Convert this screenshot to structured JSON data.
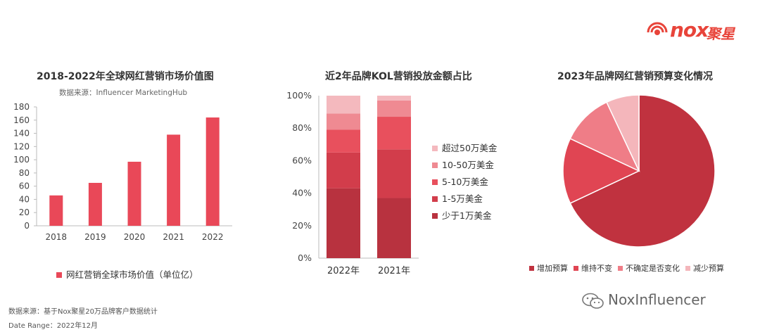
{
  "logo": {
    "text": "nox",
    "cn": "聚星",
    "color": "#e8443a"
  },
  "chart_data": [
    {
      "type": "bar",
      "title": "2018-2022年全球网红营销市场价值图",
      "subtitle": "数据来源：Influencer MarketingHub",
      "categories": [
        "2018",
        "2019",
        "2020",
        "2021",
        "2022"
      ],
      "series": [
        {
          "name": "网红营销全球市场价值（单位亿）",
          "values": [
            46,
            65,
            97,
            138,
            164
          ],
          "color": "#e94858"
        }
      ],
      "yticks": [
        "0",
        "20",
        "40",
        "60",
        "80",
        "100",
        "120",
        "140",
        "160",
        "180"
      ],
      "ylim": [
        0,
        180
      ],
      "grid": false,
      "legend": "bottom"
    },
    {
      "type": "bar",
      "stacked": true,
      "title": "近2年品牌KOL营销投放金额占比",
      "categories": [
        "2022年",
        "2021年"
      ],
      "yticks": [
        "0%",
        "20%",
        "40%",
        "60%",
        "80%",
        "100%"
      ],
      "ylim": [
        0,
        100
      ],
      "series": [
        {
          "name": "少于1万美金",
          "values": [
            43,
            37
          ],
          "color": "#b8323f"
        },
        {
          "name": "1-5万美金",
          "values": [
            22,
            30
          ],
          "color": "#d23d4b"
        },
        {
          "name": "5-10万美金",
          "values": [
            14,
            20
          ],
          "color": "#e8505d"
        },
        {
          "name": "10-50万美金",
          "values": [
            10,
            10
          ],
          "color": "#ef8a92"
        },
        {
          "name": "超过50万美金",
          "values": [
            11,
            3
          ],
          "color": "#f4b9be"
        }
      ],
      "legend": "right"
    },
    {
      "type": "pie",
      "title": "2023年品牌网红营销预算变化情况",
      "slices": [
        {
          "label": "增加预算",
          "value": 68,
          "color": "#c0323f"
        },
        {
          "label": "维持不变",
          "value": 14,
          "color": "#e04553"
        },
        {
          "label": "不确定是否变化",
          "value": 11,
          "color": "#ef7d87"
        },
        {
          "label": "减少预算",
          "value": 7,
          "color": "#f4b6bb"
        }
      ],
      "legend": "bottom"
    }
  ],
  "footer": {
    "source": "数据来源：基于Nox聚星20万品牌客户数据统计",
    "date_range": "Date Range：2022年12月"
  },
  "wechat": {
    "label": "NoxInfluencer"
  }
}
